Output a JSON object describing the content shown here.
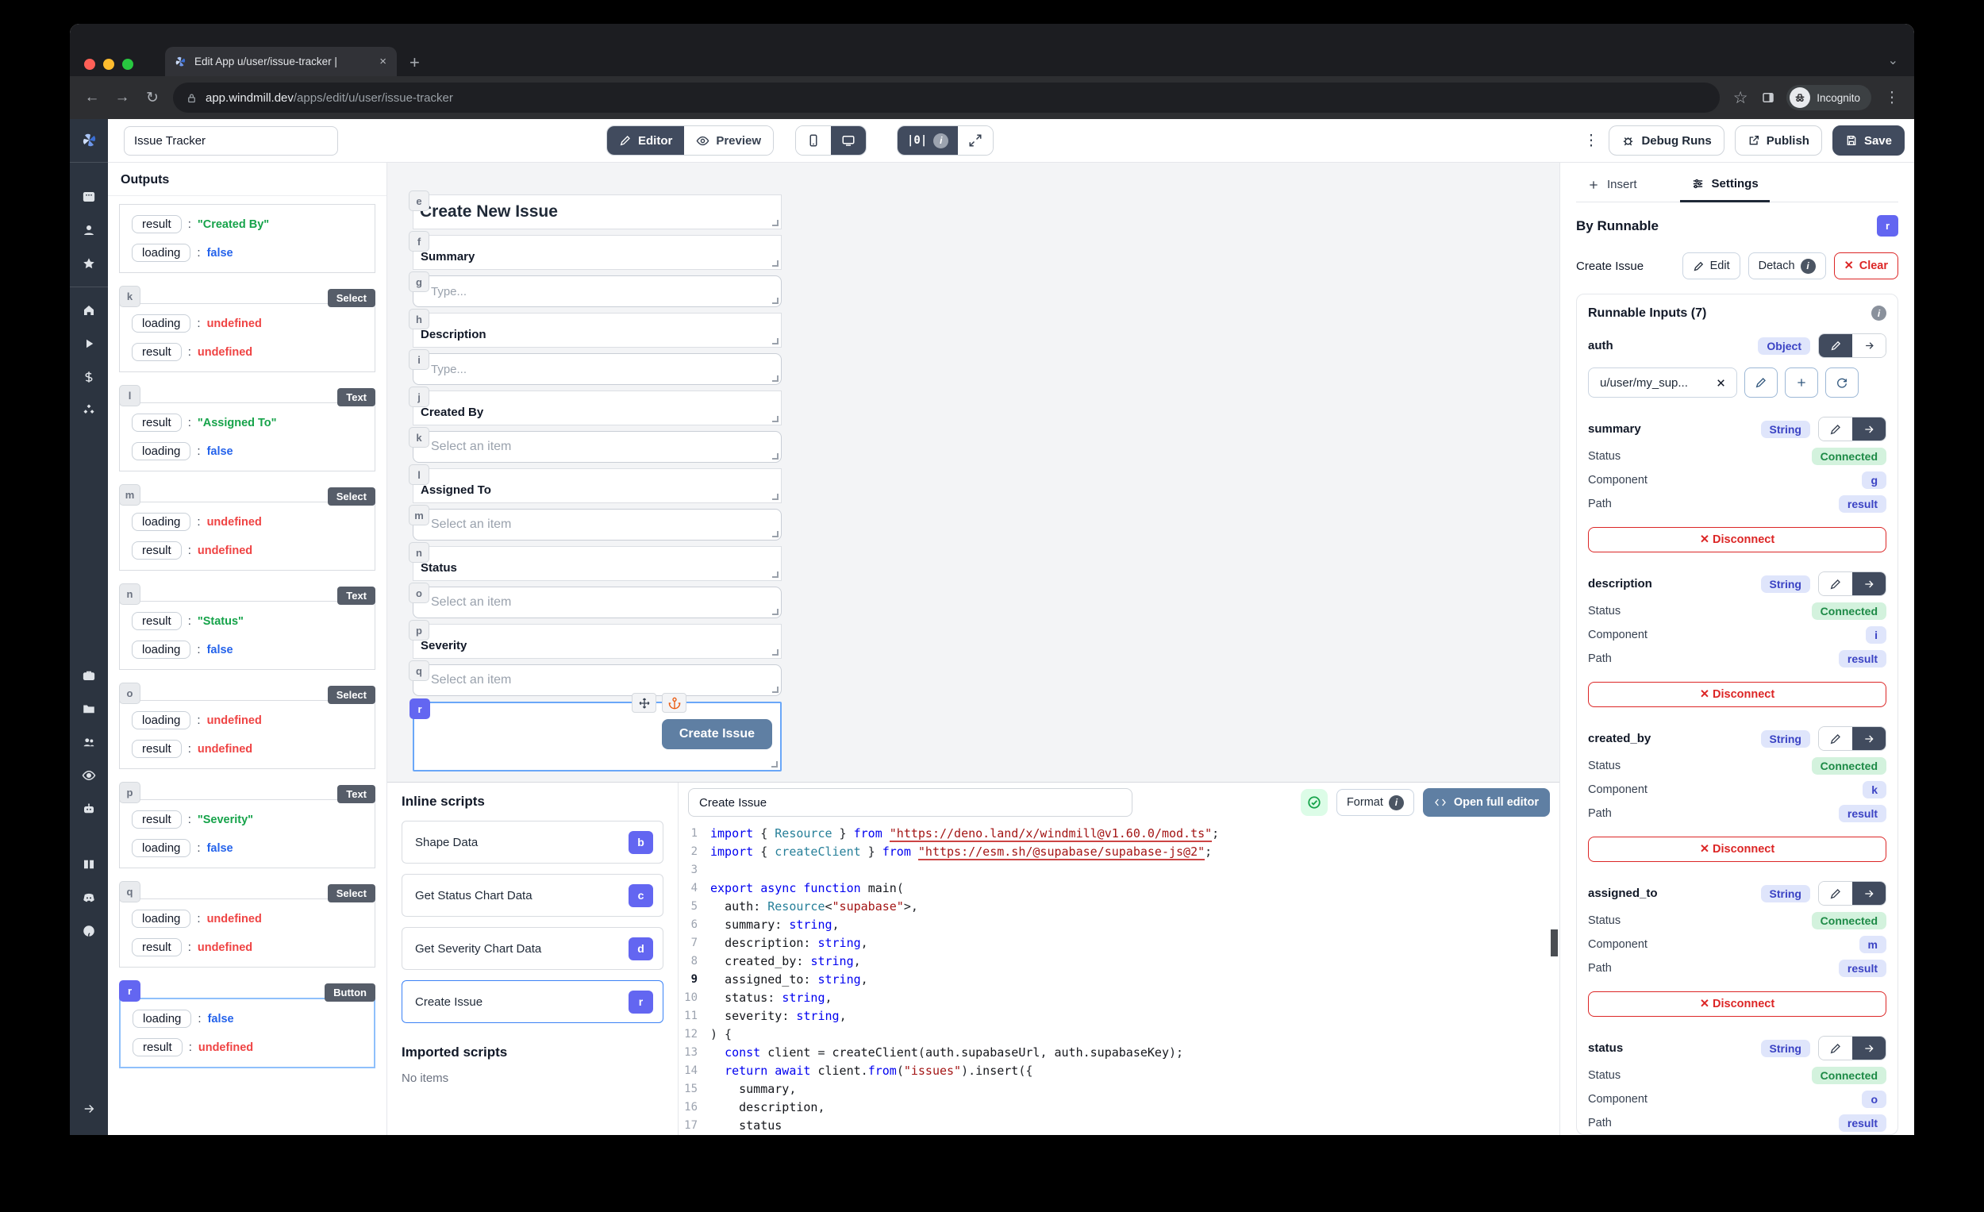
{
  "browser": {
    "tab_title": "Edit App u/user/issue-tracker |",
    "url_host": "app.windmill.dev",
    "url_path": "/apps/edit/u/user/issue-tracker",
    "incognito_label": "Incognito"
  },
  "icons": {
    "back": "←",
    "forward": "→",
    "reload": "↻",
    "new_tab": "+",
    "close_tab": "×",
    "menu_dots": "⋮",
    "bookmark_star": "☆",
    "chevron_down": "⌄",
    "outputs_meter": "|0|",
    "clear_x": "✕"
  },
  "toolbar": {
    "app_title": "Issue Tracker",
    "editor_label": "Editor",
    "preview_label": "Preview",
    "debug_runs_label": "Debug Runs",
    "publish_label": "Publish",
    "save_label": "Save"
  },
  "outputs": {
    "title": "Outputs",
    "cards": [
      {
        "id": null,
        "type": null,
        "rows": [
          {
            "k": "result",
            "v": "\"Created By\"",
            "c": "str"
          },
          {
            "k": "loading",
            "v": "false",
            "c": "bool"
          }
        ]
      },
      {
        "id": "k",
        "type": "Select",
        "rows": [
          {
            "k": "loading",
            "v": "undefined",
            "c": "undef"
          },
          {
            "k": "result",
            "v": "undefined",
            "c": "undef"
          }
        ]
      },
      {
        "id": "l",
        "type": "Text",
        "rows": [
          {
            "k": "result",
            "v": "\"Assigned To\"",
            "c": "str"
          },
          {
            "k": "loading",
            "v": "false",
            "c": "bool"
          }
        ]
      },
      {
        "id": "m",
        "type": "Select",
        "rows": [
          {
            "k": "loading",
            "v": "undefined",
            "c": "undef"
          },
          {
            "k": "result",
            "v": "undefined",
            "c": "undef"
          }
        ]
      },
      {
        "id": "n",
        "type": "Text",
        "rows": [
          {
            "k": "result",
            "v": "\"Status\"",
            "c": "str"
          },
          {
            "k": "loading",
            "v": "false",
            "c": "bool"
          }
        ]
      },
      {
        "id": "o",
        "type": "Select",
        "rows": [
          {
            "k": "loading",
            "v": "undefined",
            "c": "undef"
          },
          {
            "k": "result",
            "v": "undefined",
            "c": "undef"
          }
        ]
      },
      {
        "id": "p",
        "type": "Text",
        "rows": [
          {
            "k": "result",
            "v": "\"Severity\"",
            "c": "str"
          },
          {
            "k": "loading",
            "v": "false",
            "c": "bool"
          }
        ]
      },
      {
        "id": "q",
        "type": "Select",
        "rows": [
          {
            "k": "loading",
            "v": "undefined",
            "c": "undef"
          },
          {
            "k": "result",
            "v": "undefined",
            "c": "undef"
          }
        ]
      },
      {
        "id": "r",
        "type": "Button",
        "selected": true,
        "rows": [
          {
            "k": "loading",
            "v": "false",
            "c": "bool"
          },
          {
            "k": "result",
            "v": "undefined",
            "c": "undef"
          }
        ]
      }
    ]
  },
  "canvas": {
    "components": [
      {
        "id": "e",
        "type": "title",
        "text": "Create New Issue"
      },
      {
        "id": "f",
        "type": "label",
        "text": "Summary"
      },
      {
        "id": "g",
        "type": "input",
        "placeholder": "Type..."
      },
      {
        "id": "h",
        "type": "label",
        "text": "Description"
      },
      {
        "id": "i",
        "type": "input",
        "placeholder": "Type..."
      },
      {
        "id": "j",
        "type": "label",
        "text": "Created By"
      },
      {
        "id": "k",
        "type": "select",
        "placeholder": "Select an item"
      },
      {
        "id": "l",
        "type": "label",
        "text": "Assigned To"
      },
      {
        "id": "m",
        "type": "select",
        "placeholder": "Select an item"
      },
      {
        "id": "n",
        "type": "label",
        "text": "Status"
      },
      {
        "id": "o",
        "type": "select",
        "placeholder": "Select an item"
      },
      {
        "id": "p",
        "type": "label",
        "text": "Severity"
      },
      {
        "id": "q",
        "type": "select",
        "placeholder": "Select an item"
      },
      {
        "id": "r",
        "type": "button",
        "text": "Create Issue",
        "selected": true
      }
    ]
  },
  "inline_scripts": {
    "title": "Inline scripts",
    "items": [
      {
        "label": "Shape Data",
        "badge": "b"
      },
      {
        "label": "Get Status Chart Data",
        "badge": "c"
      },
      {
        "label": "Get Severity Chart Data",
        "badge": "d"
      },
      {
        "label": "Create Issue",
        "badge": "r",
        "selected": true
      }
    ],
    "imported_title": "Imported scripts",
    "imported_empty": "No items"
  },
  "code": {
    "script_name": "Create Issue",
    "format_label": "Format",
    "open_full_editor_label": "Open full editor",
    "active_line": 9,
    "lines": [
      [
        [
          "k",
          "import"
        ],
        [
          "p",
          " { "
        ],
        [
          "y",
          "Resource"
        ],
        [
          "p",
          " } "
        ],
        [
          "k",
          "from"
        ],
        [
          "p",
          " "
        ],
        [
          "u",
          "\"https://deno.land/x/windmill@v1.60.0/mod.ts\""
        ],
        [
          "p",
          ";"
        ]
      ],
      [
        [
          "k",
          "import"
        ],
        [
          "p",
          " { "
        ],
        [
          "y",
          "createClient"
        ],
        [
          "p",
          " } "
        ],
        [
          "k",
          "from"
        ],
        [
          "p",
          " "
        ],
        [
          "u",
          "\"https://esm.sh/@supabase/supabase-js@2\""
        ],
        [
          "p",
          ";"
        ]
      ],
      [],
      [
        [
          "k",
          "export"
        ],
        [
          "p",
          " "
        ],
        [
          "k",
          "async"
        ],
        [
          "p",
          " "
        ],
        [
          "k",
          "function"
        ],
        [
          "p",
          " "
        ],
        [
          "f",
          "main"
        ],
        [
          "p",
          "("
        ]
      ],
      [
        [
          "p",
          "  "
        ],
        [
          "v",
          "auth"
        ],
        [
          "p",
          ": "
        ],
        [
          "y",
          "Resource"
        ],
        [
          "p",
          "<"
        ],
        [
          "s",
          "\"supabase\""
        ],
        [
          "p",
          ">,"
        ]
      ],
      [
        [
          "p",
          "  "
        ],
        [
          "v",
          "summary"
        ],
        [
          "p",
          ": "
        ],
        [
          "k",
          "string"
        ],
        [
          "p",
          ","
        ]
      ],
      [
        [
          "p",
          "  "
        ],
        [
          "v",
          "description"
        ],
        [
          "p",
          ": "
        ],
        [
          "k",
          "string"
        ],
        [
          "p",
          ","
        ]
      ],
      [
        [
          "p",
          "  "
        ],
        [
          "v",
          "created_by"
        ],
        [
          "p",
          ": "
        ],
        [
          "k",
          "string"
        ],
        [
          "p",
          ","
        ]
      ],
      [
        [
          "p",
          "  "
        ],
        [
          "v",
          "assigned_to"
        ],
        [
          "p",
          ": "
        ],
        [
          "k",
          "string"
        ],
        [
          "p",
          ","
        ]
      ],
      [
        [
          "p",
          "  "
        ],
        [
          "v",
          "status"
        ],
        [
          "p",
          ": "
        ],
        [
          "k",
          "string"
        ],
        [
          "p",
          ","
        ]
      ],
      [
        [
          "p",
          "  "
        ],
        [
          "v",
          "severity"
        ],
        [
          "p",
          ": "
        ],
        [
          "k",
          "string"
        ],
        [
          "p",
          ","
        ]
      ],
      [
        [
          "p",
          ") {"
        ]
      ],
      [
        [
          "p",
          "  "
        ],
        [
          "k",
          "const"
        ],
        [
          "p",
          " "
        ],
        [
          "v",
          "client"
        ],
        [
          "p",
          " = "
        ],
        [
          "f",
          "createClient"
        ],
        [
          "p",
          "("
        ],
        [
          "v",
          "auth"
        ],
        [
          "p",
          "."
        ],
        [
          "v",
          "supabaseUrl"
        ],
        [
          "p",
          ", "
        ],
        [
          "v",
          "auth"
        ],
        [
          "p",
          "."
        ],
        [
          "v",
          "supabaseKey"
        ],
        [
          "p",
          ");"
        ]
      ],
      [
        [
          "p",
          "  "
        ],
        [
          "k",
          "return"
        ],
        [
          "p",
          " "
        ],
        [
          "k",
          "await"
        ],
        [
          "p",
          " "
        ],
        [
          "v",
          "client"
        ],
        [
          "p",
          "."
        ],
        [
          "k",
          "from"
        ],
        [
          "p",
          "("
        ],
        [
          "s",
          "\"issues\""
        ],
        [
          "p",
          ")."
        ],
        [
          "f",
          "insert"
        ],
        [
          "p",
          "({"
        ]
      ],
      [
        [
          "p",
          "    "
        ],
        [
          "v",
          "summary"
        ],
        [
          "p",
          ","
        ]
      ],
      [
        [
          "p",
          "    "
        ],
        [
          "v",
          "description"
        ],
        [
          "p",
          ","
        ]
      ],
      [
        [
          "p",
          "    "
        ],
        [
          "v",
          "status"
        ]
      ]
    ]
  },
  "settings": {
    "insert_tab": "Insert",
    "settings_tab": "Settings",
    "by_runnable_title": "By Runnable",
    "runnable_badge": "r",
    "runnable_name": "Create Issue",
    "edit_label": "Edit",
    "detach_label": "Detach",
    "clear_label": "Clear",
    "inputs_title": "Runnable Inputs (7)",
    "status_label": "Status",
    "component_label": "Component",
    "path_label": "Path",
    "connected_label": "Connected",
    "disconnect_label": "✕ Disconnect",
    "auth": {
      "name": "auth",
      "type": "Object",
      "value": "u/user/my_sup..."
    },
    "inputs": [
      {
        "name": "summary",
        "type": "String",
        "component": "g",
        "path": "result"
      },
      {
        "name": "description",
        "type": "String",
        "component": "i",
        "path": "result"
      },
      {
        "name": "created_by",
        "type": "String",
        "component": "k",
        "path": "result"
      },
      {
        "name": "assigned_to",
        "type": "String",
        "component": "m",
        "path": "result"
      },
      {
        "name": "status",
        "type": "String",
        "component": "o",
        "path": "result"
      }
    ]
  },
  "colors": {
    "accent_indigo": "#6366f1",
    "slate_button": "#5f7fa3",
    "connected_green_bg": "#d3f2dd",
    "connected_green_text": "#1d8a46",
    "error_red": "#dc2626",
    "dark_navy": "#414b5e",
    "string_green": "#16a34a",
    "bool_blue": "#2563eb",
    "undefined_red": "#ef4444"
  }
}
